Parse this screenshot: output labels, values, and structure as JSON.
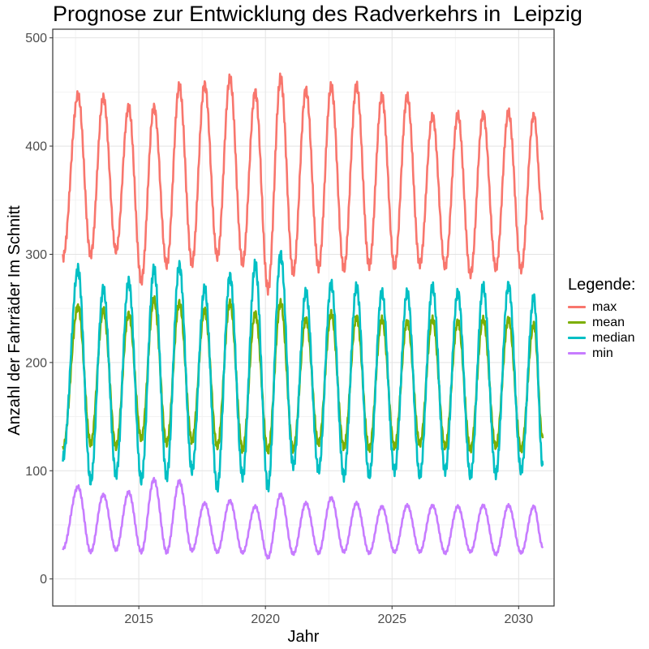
{
  "chart_data": {
    "type": "line",
    "title": "Prognose zur Entwicklung des Radverkehrs in  Leipzig",
    "xlabel": "Jahr",
    "ylabel": "Anzahl der Fahrräder Im Schnitt",
    "xlim": [
      2011.6,
      2031.4
    ],
    "ylim": [
      -25,
      508
    ],
    "x_ticks": [
      2015,
      2020,
      2025,
      2030
    ],
    "y_ticks": [
      0,
      100,
      200,
      300,
      400,
      500
    ],
    "grid": true,
    "legend_title": "Legende:",
    "legend_position": "right",
    "series_peaks_note": "",
    "series": [
      {
        "name": "max",
        "color": "#F8766D",
        "x": [
          2012.0,
          2012.6,
          2013.1,
          2013.6,
          2014.1,
          2014.6,
          2015.1,
          2015.6,
          2016.1,
          2016.6,
          2017.1,
          2017.6,
          2018.1,
          2018.6,
          2019.1,
          2019.6,
          2020.1,
          2020.6,
          2021.1,
          2021.6,
          2022.1,
          2022.6,
          2023.1,
          2023.6,
          2024.1,
          2024.6,
          2025.1,
          2025.6,
          2026.1,
          2026.6,
          2027.1,
          2027.6,
          2028.1,
          2028.6,
          2029.1,
          2029.6,
          2030.1,
          2030.6,
          2030.95
        ],
        "values": [
          297,
          447,
          300,
          445,
          303,
          436,
          276,
          436,
          290,
          455,
          292,
          457,
          298,
          462,
          292,
          450,
          268,
          462,
          283,
          452,
          288,
          455,
          286,
          456,
          290,
          446,
          288,
          446,
          291,
          428,
          288,
          429,
          282,
          430,
          287,
          431,
          286,
          429,
          334
        ]
      },
      {
        "name": "mean",
        "color": "#7CAE00",
        "x": [
          2012.0,
          2012.6,
          2013.1,
          2013.6,
          2014.1,
          2014.6,
          2015.1,
          2015.6,
          2016.1,
          2016.6,
          2017.1,
          2017.6,
          2018.1,
          2018.6,
          2019.1,
          2019.6,
          2020.1,
          2020.6,
          2021.1,
          2021.6,
          2022.1,
          2022.6,
          2023.1,
          2023.6,
          2024.1,
          2024.6,
          2025.1,
          2025.6,
          2026.1,
          2026.6,
          2027.1,
          2027.6,
          2028.1,
          2028.6,
          2029.1,
          2029.6,
          2030.1,
          2030.6,
          2030.95
        ],
        "values": [
          120,
          252,
          125,
          248,
          122,
          245,
          130,
          258,
          125,
          255,
          128,
          248,
          122,
          255,
          120,
          245,
          118,
          255,
          120,
          240,
          125,
          245,
          122,
          242,
          120,
          240,
          122,
          238,
          125,
          240,
          122,
          238,
          120,
          240,
          122,
          240,
          120,
          235,
          130
        ]
      },
      {
        "name": "median",
        "color": "#00BFC4",
        "x": [
          2012.0,
          2012.6,
          2013.1,
          2013.6,
          2014.1,
          2014.6,
          2015.1,
          2015.6,
          2016.1,
          2016.6,
          2017.1,
          2017.6,
          2018.1,
          2018.6,
          2019.1,
          2019.6,
          2020.1,
          2020.6,
          2021.1,
          2021.6,
          2022.1,
          2022.6,
          2023.1,
          2023.6,
          2024.1,
          2024.6,
          2025.1,
          2025.6,
          2026.1,
          2026.6,
          2027.1,
          2027.6,
          2028.1,
          2028.6,
          2029.1,
          2029.6,
          2030.1,
          2030.6,
          2030.95
        ],
        "values": [
          112,
          286,
          90,
          268,
          97,
          275,
          91,
          286,
          95,
          290,
          100,
          268,
          85,
          280,
          95,
          290,
          85,
          300,
          105,
          265,
          100,
          273,
          95,
          270,
          95,
          265,
          100,
          265,
          95,
          270,
          100,
          265,
          95,
          270,
          97,
          272,
          100,
          260,
          105
        ]
      },
      {
        "name": "min",
        "color": "#C77CFF",
        "x": [
          2012.0,
          2012.6,
          2013.1,
          2013.6,
          2014.1,
          2014.6,
          2015.1,
          2015.6,
          2016.1,
          2016.6,
          2017.1,
          2017.6,
          2018.1,
          2018.6,
          2019.1,
          2019.6,
          2020.1,
          2020.6,
          2021.1,
          2021.6,
          2022.1,
          2022.6,
          2023.1,
          2023.6,
          2024.1,
          2024.6,
          2025.1,
          2025.6,
          2026.1,
          2026.6,
          2027.1,
          2027.6,
          2028.1,
          2028.6,
          2029.1,
          2029.6,
          2030.1,
          2030.6,
          2030.95
        ],
        "values": [
          28,
          85,
          25,
          78,
          27,
          80,
          25,
          92,
          25,
          90,
          26,
          70,
          25,
          72,
          24,
          67,
          20,
          78,
          23,
          70,
          24,
          75,
          25,
          70,
          24,
          67,
          25,
          68,
          25,
          68,
          24,
          67,
          25,
          68,
          23,
          68,
          24,
          67,
          30
        ]
      }
    ]
  }
}
